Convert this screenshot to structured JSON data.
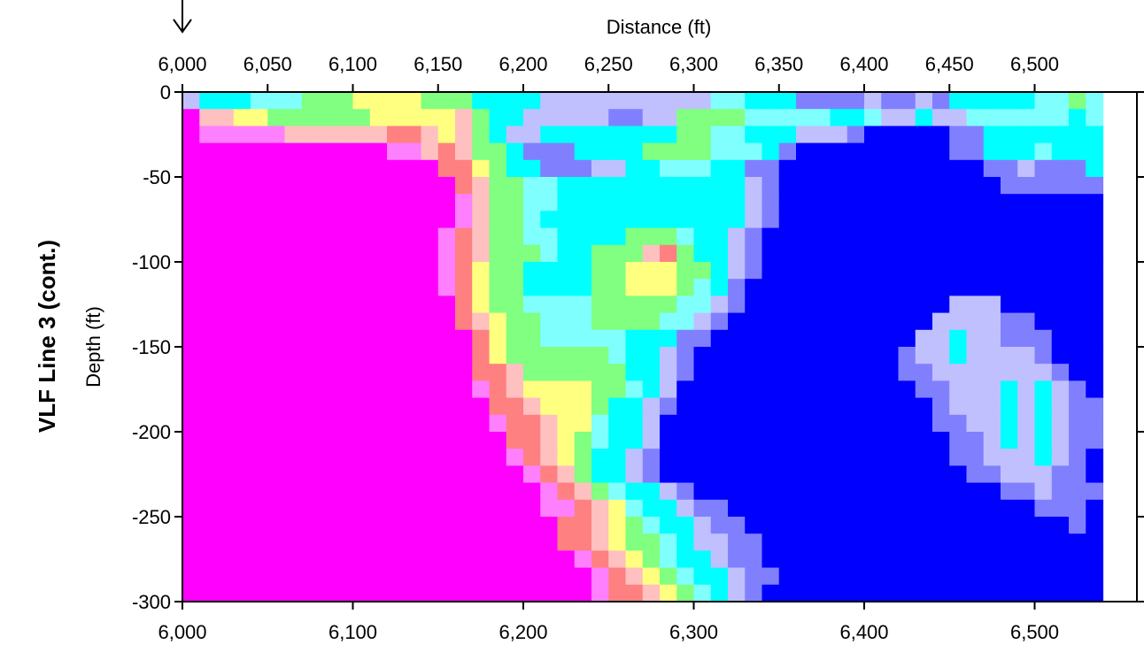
{
  "chart_data": {
    "type": "heatmap",
    "side_title": "VLF Line 3 (cont.)",
    "xlabel": "Distance (ft)",
    "ylabel": "Depth (ft)",
    "xlim": [
      6000,
      6560
    ],
    "ylim": [
      -300,
      0
    ],
    "top_ticks": [
      6000,
      6050,
      6100,
      6150,
      6200,
      6250,
      6300,
      6350,
      6400,
      6450,
      6500
    ],
    "top_tick_labels": [
      "6,000",
      "6,050",
      "6,100",
      "6,150",
      "6,200",
      "6,250",
      "6,300",
      "6,350",
      "6,400",
      "6,450",
      "6,500"
    ],
    "bottom_ticks": [
      6000,
      6100,
      6200,
      6300,
      6400,
      6500
    ],
    "bottom_tick_labels": [
      "6,000",
      "6,100",
      "6,200",
      "6,300",
      "6,400",
      "6,500"
    ],
    "y_ticks": [
      0,
      -50,
      -100,
      -150,
      -200,
      -250,
      -300
    ],
    "y_tick_labels": [
      "0",
      "-50",
      "-100",
      "-150",
      "-200",
      "-250",
      "-300"
    ],
    "marker_x": 6000,
    "colors": [
      "#ff00ff",
      "#ff80ff",
      "#ff8080",
      "#ffc0c0",
      "#ffff80",
      "#80ff80",
      "#80ffff",
      "#00ffff",
      "#c0c0ff",
      "#8080ff",
      "#0000ff"
    ],
    "grid": {
      "x_step": 10,
      "y_step": 10,
      "rows": [
        "IHHHGGGFFFEEEEFFFHHHHIIIIIIIIIIGGHHHJJJJIJJIJHHHHHGGFG",
        "ADDEEFFFFFFEEEEEDFHHIIIIIJJIIFFFFGGGGGHHGIIHIIGGGGGGHG",
        "ABBBBBDDDDDDCCDEDFHIIHHHHHHHHFFGGHHHIIIJKKKKKJJHHHHHHH",
        "AAAAAAAAAAAABBDCDFFHJJJHHHHFFFFGGGHJKKKKKKKKKJJHHHGHHH",
        "AAAAAAAAAAAAAAACCEFHHJJJIIHHGGGHHJJKKKKKKKKKKKKJJIJJJH",
        "AAAAAAAAAAAAAAAACDFFGGHHHHHHHHHHHIJKKKKKKKKKKKKKJJJJJJ",
        "AAAAAAAAAAAAAAAABDFFGGHHHHHHHHHHHIJKKKKKKKKKKKKKKKKKKK",
        "AAAAAAAAAAAAAAAABDFFGHHHHHHHHHHHHIJKKKKKKKKKKKKKKKKKKK",
        "AAAAAAAAAAAAAAABCDFFGGHHHHFFFGHHIJKKKKKKKKKKKKKKKKKKKK",
        "AAAAAAAAAAAAAAABCDFFFGHHFFFDCFHHIJKKKKKKKKKKKKKKKKKKKK",
        "AAAAAAAAAAAAAAABCEFFHHHHFFEEEFFHIJKKKKKKKKKKKKKKKKKKKK",
        "AAAAAAAAAAAAAAABCEFFHHHHFFEEEFGHJKKKKKKKKKKKKKKKKKKKKK",
        "AAAAAAAAAAAAAAAACEFFGGGGFFFFFGGIJKKKKKKKKKKKKIIIKKKKKK",
        "AAAAAAAAAAAAAAAACDEFFGGGFFFFGGIJKKKKKKKKKKKKIIIIJJKKKK",
        "AAAAAAAAAAAAAAAAACEFFGGGGGHHHJJKKKKKKKKKKKKIIHIIJJJKKK",
        "AAAAAAAAAAAAAAAAACEFFFFFFGHHIJKKKKKKKKKKKKJIIHIIIIJKKK",
        "AAAAAAAAAAAAAAAAACCDFFFFFFHHIJKKKKKKKKKKKKJJIIIIIIIJKK",
        "AAAAAAAAAAAAAAAAABCDEEEEFFGHIKKKKKKKKKKKKKKJJIIIHIHIJK",
        "AAAAAAAAAAAAAAAAAACCDEEEFHHIJKKKKKKKKKKKKKKKJIIIHIHIJJ",
        "AAAAAAAAAAAAAAAAAABCCDEEGHHIKKKKKKKKKKKKKKKKJJIIHIHIJJ",
        "AAAAAAAAAAAAAAAAAAACCDEFGHHIKKKKKKKKKKKKKKKKKJJIHIHIJJ",
        "AAAAAAAAAAAAAAAAAAABCDEFHHIJKKKKKKKKKKKKKKKKKJJIIIHIJK",
        "AAAAAAAAAAAAAAAAAAAABCDFHHIJKKKKKKKKKKKKKKKKKKJJIIIJJK",
        "AAAAAAAAAAAAAAAAAAAAABCDFGHHIJKKKKKKKKKKKKKKKKKKJJIJJJ",
        "AAAAAAAAAAAAAAAAAAAAABBCDEGHHIJJKKKKKKKKKKKKKKKKKKJJJK",
        "AAAAAAAAAAAAAAAAAAAAAACCDEFGHHIJJKKKKKKKKKKKKKKKKKKKJK",
        "AAAAAAAAAAAAAAAAAAAAAACCDEFFGHIIJJKKKKKKKKKKKKKKKKKKKK",
        "AAAAAAAAAAAAAAAAAAAAAAABCDEFGHHIJJKKKKKKKKKKKKKKKKKKKK",
        "AAAAAAAAAAAAAAAAAAAAAAAABCDEFGHHIJJKKKKKKKKKKKKKKKKKKK",
        "AAAAAAAAAAAAAAAAAAAAAAAABCCDEFGHIJKKKKKKKKKKKKKKKKKKKK"
      ]
    }
  }
}
